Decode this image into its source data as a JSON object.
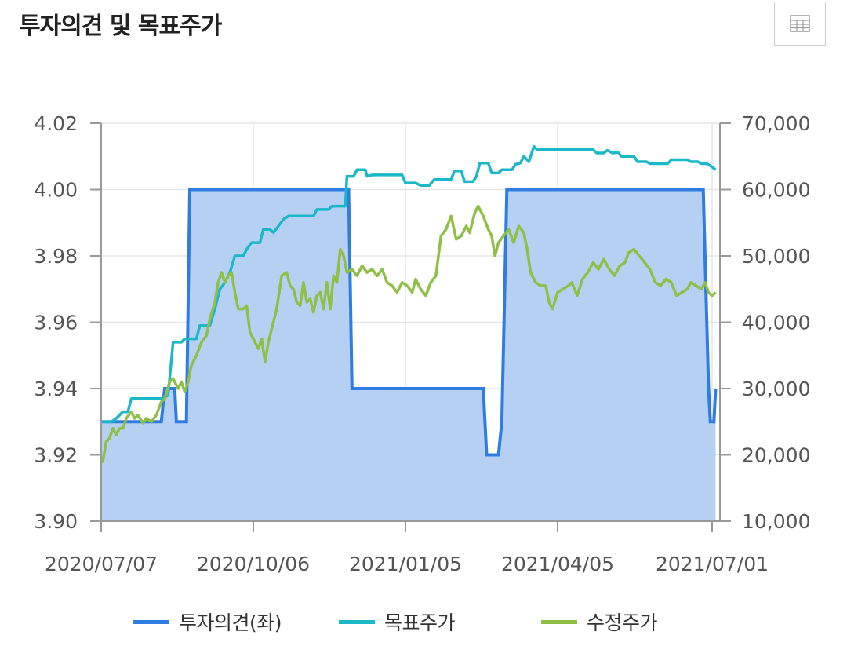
{
  "header": {
    "title": "투자의견 및 목표주가",
    "table_icon": "table-grid-icon"
  },
  "chart_data": {
    "type": "area-line",
    "x_ticks": [
      "2020/07/07",
      "2020/10/06",
      "2021/01/05",
      "2021/04/05",
      "2021/07/01"
    ],
    "y_left": {
      "min": 3.9,
      "max": 4.02,
      "ticks": [
        "3.90",
        "3.92",
        "3.94",
        "3.96",
        "3.98",
        "4.00",
        "4.02"
      ]
    },
    "y_right": {
      "min": 10000,
      "max": 70000,
      "ticks": [
        "10,000",
        "20,000",
        "30,000",
        "40,000",
        "50,000",
        "60,000",
        "70,000"
      ]
    },
    "grid": true,
    "legend_position": "bottom",
    "series": [
      {
        "name": "투자의견(좌)",
        "axis": "left",
        "kind": "area",
        "color": "#2f7de1",
        "fill": "#b5d0f3",
        "points": [
          [
            "2020/07/07",
            3.93
          ],
          [
            "2020/08/12",
            3.93
          ],
          [
            "2020/08/14",
            3.94
          ],
          [
            "2020/08/20",
            3.94
          ],
          [
            "2020/08/21",
            3.93
          ],
          [
            "2020/08/27",
            3.93
          ],
          [
            "2020/08/29",
            4.0
          ],
          [
            "2020/12/02",
            4.0
          ],
          [
            "2020/12/04",
            3.94
          ],
          [
            "2021/02/20",
            3.94
          ],
          [
            "2021/02/22",
            3.92
          ],
          [
            "2021/03/01",
            3.92
          ],
          [
            "2021/03/03",
            3.93
          ],
          [
            "2021/03/06",
            4.0
          ],
          [
            "2021/06/26",
            4.0
          ],
          [
            "2021/06/29",
            3.94
          ],
          [
            "2021/06/30",
            3.93
          ],
          [
            "2021/07/02",
            3.93
          ],
          [
            "2021/07/03",
            3.94
          ]
        ]
      },
      {
        "name": "목표주가",
        "axis": "right",
        "kind": "line",
        "color": "#1ab8c8",
        "points": [
          [
            "2020/07/07",
            25000
          ],
          [
            "2020/07/13",
            25000
          ],
          [
            "2020/07/16",
            25500
          ],
          [
            "2020/07/20",
            26500
          ],
          [
            "2020/07/23",
            26500
          ],
          [
            "2020/07/25",
            28500
          ],
          [
            "2020/08/13",
            28500
          ],
          [
            "2020/08/16",
            29000
          ],
          [
            "2020/08/19",
            37000
          ],
          [
            "2020/08/24",
            37000
          ],
          [
            "2020/08/26",
            37500
          ],
          [
            "2020/09/02",
            37500
          ],
          [
            "2020/09/04",
            39500
          ],
          [
            "2020/09/10",
            39500
          ],
          [
            "2020/09/13",
            42000
          ],
          [
            "2020/09/16",
            45000
          ],
          [
            "2020/09/19",
            46000
          ],
          [
            "2020/09/22",
            47500
          ],
          [
            "2020/09/25",
            50000
          ],
          [
            "2020/09/30",
            50000
          ],
          [
            "2020/10/02",
            51000
          ],
          [
            "2020/10/05",
            52000
          ],
          [
            "2020/10/10",
            52000
          ],
          [
            "2020/10/12",
            54000
          ],
          [
            "2020/10/16",
            54000
          ],
          [
            "2020/10/18",
            53500
          ],
          [
            "2020/10/21",
            54500
          ],
          [
            "2020/10/24",
            55500
          ],
          [
            "2020/10/27",
            56000
          ],
          [
            "2020/11/11",
            56000
          ],
          [
            "2020/11/13",
            57000
          ],
          [
            "2020/11/20",
            57000
          ],
          [
            "2020/11/22",
            57500
          ],
          [
            "2020/11/30",
            57500
          ],
          [
            "2020/12/01",
            62000
          ],
          [
            "2020/12/05",
            62000
          ],
          [
            "2020/12/07",
            63000
          ],
          [
            "2020/12/12",
            63000
          ],
          [
            "2020/12/13",
            62000
          ],
          [
            "2020/12/16",
            62200
          ],
          [
            "2021/01/03",
            62200
          ],
          [
            "2021/01/05",
            61000
          ],
          [
            "2021/01/11",
            61000
          ],
          [
            "2021/01/14",
            60600
          ],
          [
            "2021/01/19",
            60600
          ],
          [
            "2021/01/22",
            61500
          ],
          [
            "2021/02/01",
            61500
          ],
          [
            "2021/02/03",
            62800
          ],
          [
            "2021/02/07",
            62800
          ],
          [
            "2021/02/09",
            61200
          ],
          [
            "2021/02/14",
            61200
          ],
          [
            "2021/02/16",
            62000
          ],
          [
            "2021/02/18",
            64000
          ],
          [
            "2021/02/23",
            64000
          ],
          [
            "2021/02/25",
            62500
          ],
          [
            "2021/03/01",
            62500
          ],
          [
            "2021/03/03",
            63000
          ],
          [
            "2021/03/09",
            63000
          ],
          [
            "2021/03/11",
            63800
          ],
          [
            "2021/03/14",
            64000
          ],
          [
            "2021/03/16",
            65000
          ],
          [
            "2021/03/19",
            64200
          ],
          [
            "2021/03/22",
            66500
          ],
          [
            "2021/03/24",
            66000
          ],
          [
            "2021/04/25",
            66000
          ],
          [
            "2021/04/27",
            65500
          ],
          [
            "2021/05/01",
            65500
          ],
          [
            "2021/05/03",
            65900
          ],
          [
            "2021/05/06",
            65500
          ],
          [
            "2021/05/09",
            65600
          ],
          [
            "2021/05/11",
            65000
          ],
          [
            "2021/05/18",
            65000
          ],
          [
            "2021/05/20",
            64200
          ],
          [
            "2021/05/25",
            64200
          ],
          [
            "2021/05/27",
            63900
          ],
          [
            "2021/06/06",
            63900
          ],
          [
            "2021/06/08",
            64500
          ],
          [
            "2021/06/17",
            64500
          ],
          [
            "2021/06/19",
            64200
          ],
          [
            "2021/06/23",
            64200
          ],
          [
            "2021/06/25",
            63900
          ],
          [
            "2021/06/28",
            63900
          ],
          [
            "2021/06/30",
            63600
          ],
          [
            "2021/07/03",
            63000
          ]
        ]
      },
      {
        "name": "수정주가",
        "axis": "right",
        "kind": "line",
        "color": "#8fbf47",
        "points": [
          [
            "2020/07/07",
            19500
          ],
          [
            "2020/07/08",
            19000
          ],
          [
            "2020/07/10",
            22000
          ],
          [
            "2020/07/12",
            22500
          ],
          [
            "2020/07/14",
            24000
          ],
          [
            "2020/07/16",
            23000
          ],
          [
            "2020/07/18",
            24000
          ],
          [
            "2020/07/20",
            24000
          ],
          [
            "2020/07/22",
            25500
          ],
          [
            "2020/07/25",
            26500
          ],
          [
            "2020/07/27",
            25500
          ],
          [
            "2020/07/29",
            26000
          ],
          [
            "2020/08/01",
            24800
          ],
          [
            "2020/08/03",
            25500
          ],
          [
            "2020/08/06",
            25000
          ],
          [
            "2020/08/09",
            26000
          ],
          [
            "2020/08/12",
            28000
          ],
          [
            "2020/08/14",
            28500
          ],
          [
            "2020/08/17",
            31000
          ],
          [
            "2020/08/19",
            31500
          ],
          [
            "2020/08/22",
            30000
          ],
          [
            "2020/08/24",
            31000
          ],
          [
            "2020/08/26",
            29500
          ],
          [
            "2020/08/28",
            31000
          ],
          [
            "2020/08/30",
            33500
          ],
          [
            "2020/09/02",
            35000
          ],
          [
            "2020/09/05",
            37000
          ],
          [
            "2020/09/08",
            38000
          ],
          [
            "2020/09/10",
            40500
          ],
          [
            "2020/09/13",
            43000
          ],
          [
            "2020/09/15",
            46000
          ],
          [
            "2020/09/17",
            47500
          ],
          [
            "2020/09/19",
            46000
          ],
          [
            "2020/09/21",
            47000
          ],
          [
            "2020/09/23",
            47500
          ],
          [
            "2020/09/25",
            44500
          ],
          [
            "2020/09/27",
            42000
          ],
          [
            "2020/09/30",
            42000
          ],
          [
            "2020/10/02",
            42500
          ],
          [
            "2020/10/04",
            38500
          ],
          [
            "2020/10/07",
            37000
          ],
          [
            "2020/10/09",
            36000
          ],
          [
            "2020/10/11",
            37500
          ],
          [
            "2020/10/13",
            34000
          ],
          [
            "2020/10/15",
            37000
          ],
          [
            "2020/10/18",
            40000
          ],
          [
            "2020/10/20",
            42000
          ],
          [
            "2020/10/23",
            47000
          ],
          [
            "2020/10/26",
            47500
          ],
          [
            "2020/10/28",
            45500
          ],
          [
            "2020/10/30",
            45000
          ],
          [
            "2020/11/01",
            43000
          ],
          [
            "2020/11/03",
            42500
          ],
          [
            "2020/11/05",
            46000
          ],
          [
            "2020/11/07",
            43000
          ],
          [
            "2020/11/09",
            43500
          ],
          [
            "2020/11/11",
            41500
          ],
          [
            "2020/11/13",
            44000
          ],
          [
            "2020/11/15",
            44500
          ],
          [
            "2020/11/17",
            42000
          ],
          [
            "2020/11/19",
            46000
          ],
          [
            "2020/11/21",
            42000
          ],
          [
            "2020/11/23",
            47000
          ],
          [
            "2020/11/25",
            46000
          ],
          [
            "2020/11/27",
            51000
          ],
          [
            "2020/11/29",
            50000
          ],
          [
            "2020/12/01",
            47500
          ],
          [
            "2020/12/04",
            48000
          ],
          [
            "2020/12/07",
            47000
          ],
          [
            "2020/12/10",
            48500
          ],
          [
            "2020/12/13",
            47500
          ],
          [
            "2020/12/16",
            48000
          ],
          [
            "2020/12/19",
            47000
          ],
          [
            "2020/12/22",
            48000
          ],
          [
            "2020/12/25",
            46000
          ],
          [
            "2020/12/28",
            45500
          ],
          [
            "2020/12/31",
            44500
          ],
          [
            "2021/01/03",
            46000
          ],
          [
            "2021/01/06",
            45500
          ],
          [
            "2021/01/09",
            44500
          ],
          [
            "2021/01/11",
            46500
          ],
          [
            "2021/01/14",
            45000
          ],
          [
            "2021/01/17",
            44000
          ],
          [
            "2021/01/20",
            46000
          ],
          [
            "2021/01/23",
            47000
          ],
          [
            "2021/01/26",
            53000
          ],
          [
            "2021/01/29",
            54000
          ],
          [
            "2021/02/01",
            56000
          ],
          [
            "2021/02/04",
            52500
          ],
          [
            "2021/02/07",
            53000
          ],
          [
            "2021/02/10",
            54500
          ],
          [
            "2021/02/12",
            53500
          ],
          [
            "2021/02/15",
            56500
          ],
          [
            "2021/02/17",
            57500
          ],
          [
            "2021/02/20",
            56000
          ],
          [
            "2021/02/23",
            54000
          ],
          [
            "2021/02/25",
            53000
          ],
          [
            "2021/02/27",
            50000
          ],
          [
            "2021/03/01",
            52000
          ],
          [
            "2021/03/04",
            53000
          ],
          [
            "2021/03/07",
            54000
          ],
          [
            "2021/03/10",
            52000
          ],
          [
            "2021/03/13",
            54500
          ],
          [
            "2021/03/16",
            53500
          ],
          [
            "2021/03/18",
            51000
          ],
          [
            "2021/03/20",
            47500
          ],
          [
            "2021/03/23",
            46000
          ],
          [
            "2021/03/26",
            45500
          ],
          [
            "2021/03/29",
            45500
          ],
          [
            "2021/03/31",
            43000
          ],
          [
            "2021/04/02",
            42000
          ],
          [
            "2021/04/05",
            44500
          ],
          [
            "2021/04/08",
            45000
          ],
          [
            "2021/04/11",
            45500
          ],
          [
            "2021/04/13",
            46000
          ],
          [
            "2021/04/16",
            44000
          ],
          [
            "2021/04/19",
            46500
          ],
          [
            "2021/04/22",
            47500
          ],
          [
            "2021/04/25",
            49000
          ],
          [
            "2021/04/28",
            48000
          ],
          [
            "2021/05/01",
            49500
          ],
          [
            "2021/05/04",
            48000
          ],
          [
            "2021/05/07",
            47000
          ],
          [
            "2021/05/10",
            48500
          ],
          [
            "2021/05/13",
            49000
          ],
          [
            "2021/05/15",
            50500
          ],
          [
            "2021/05/18",
            51000
          ],
          [
            "2021/05/21",
            50000
          ],
          [
            "2021/05/24",
            49000
          ],
          [
            "2021/05/27",
            48000
          ],
          [
            "2021/05/30",
            46000
          ],
          [
            "2021/06/02",
            45500
          ],
          [
            "2021/06/05",
            46500
          ],
          [
            "2021/06/08",
            46000
          ],
          [
            "2021/06/11",
            44000
          ],
          [
            "2021/06/14",
            44500
          ],
          [
            "2021/06/17",
            45000
          ],
          [
            "2021/06/19",
            46000
          ],
          [
            "2021/06/22",
            45500
          ],
          [
            "2021/06/25",
            45000
          ],
          [
            "2021/06/27",
            46000
          ],
          [
            "2021/06/29",
            44500
          ],
          [
            "2021/07/01",
            44000
          ],
          [
            "2021/07/03",
            44500
          ]
        ]
      }
    ]
  }
}
